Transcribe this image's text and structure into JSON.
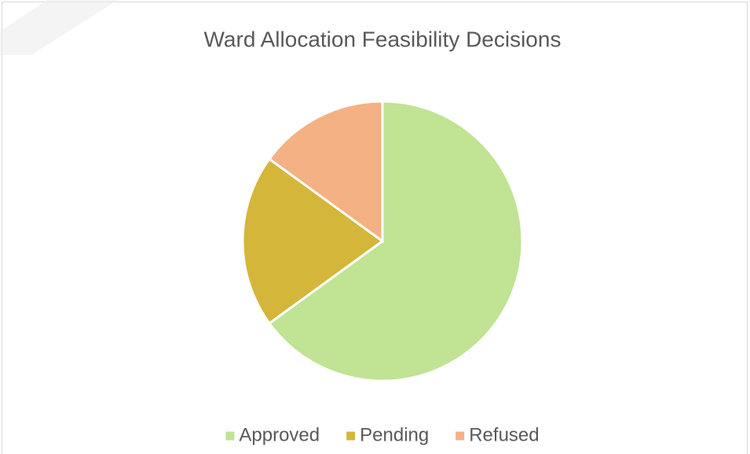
{
  "chart_data": {
    "type": "pie",
    "title": "Ward Allocation Feasibility Decisions",
    "categories": [
      "Approved",
      "Pending",
      "Refused"
    ],
    "values": [
      65,
      20,
      15
    ],
    "colors": [
      "#c0e394",
      "#d4b63a",
      "#f4b183"
    ],
    "legend": "bottom"
  }
}
